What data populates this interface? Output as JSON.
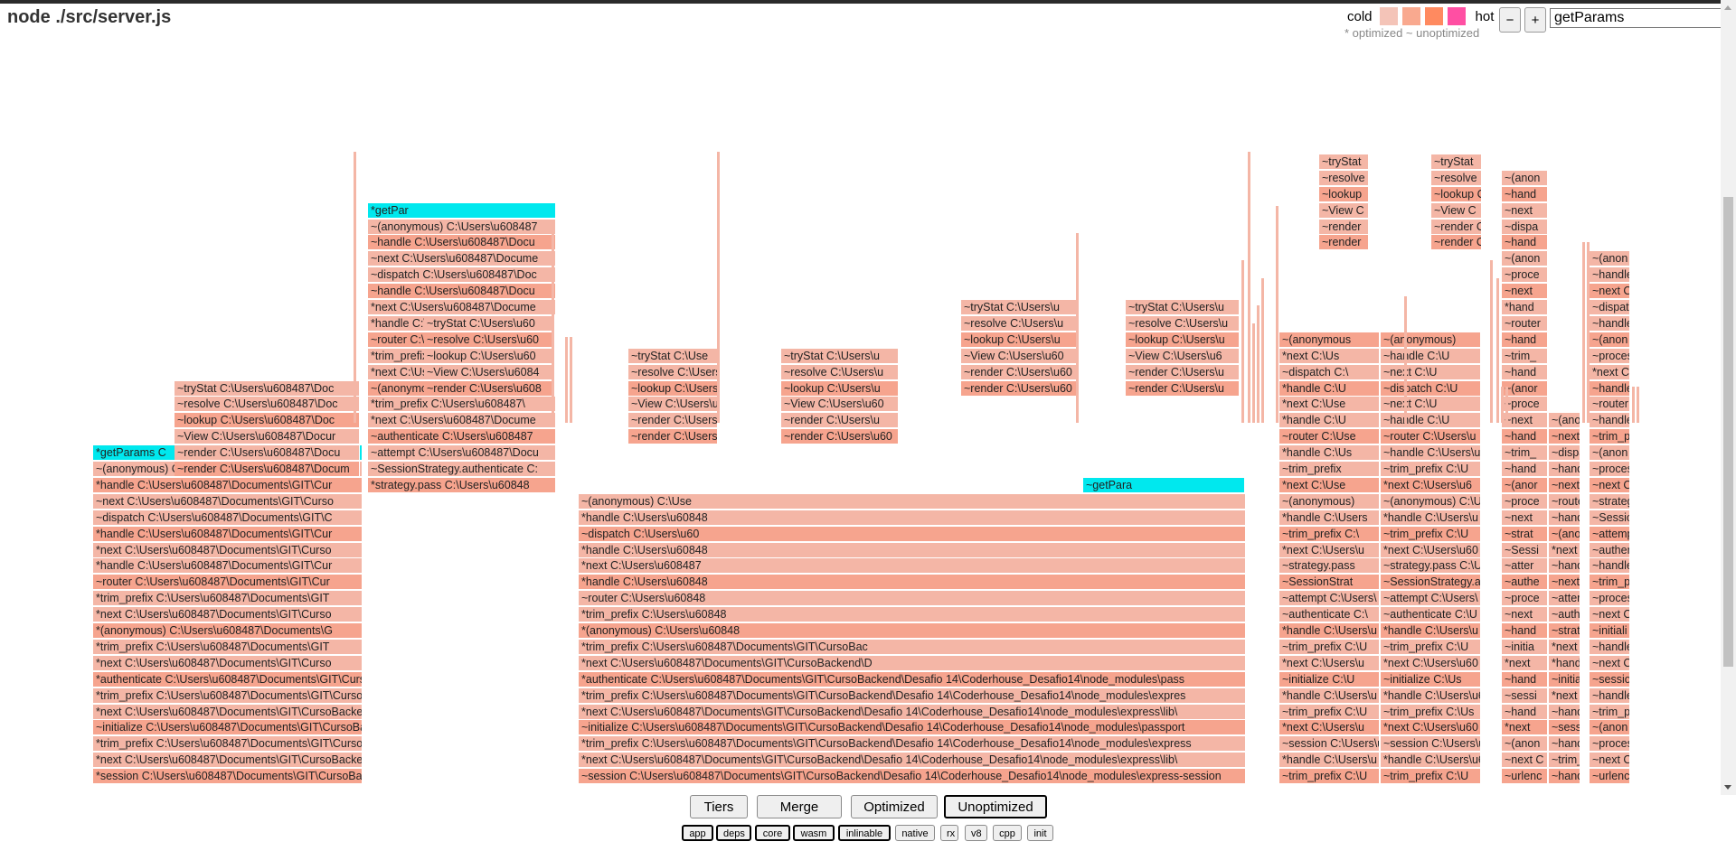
{
  "header": {
    "title": "node ./src/server.js",
    "legend": {
      "cold_label": "cold",
      "hot_label": "hot",
      "note": "* optimized ~ unoptimized",
      "swatch_colors": [
        "#f4c4b8",
        "#f9a98f",
        "#ff8a60",
        "#ff4fa3"
      ]
    },
    "zoom_out_label": "−",
    "zoom_in_label": "+",
    "search_value": "getParams"
  },
  "colors": {
    "frame_cold": "#f4b6a6",
    "frame_warm": "#f6a48e",
    "frame_highlight": "#00e8ee",
    "frame_border": "#ffffff"
  },
  "flamegraph": {
    "stacks": [
      {
        "frames": [
          "*session C:\\Users\\u608487\\Documents\\GIT\\CursoBackend\\Desafio 14\\Coderhouse_De",
          "*next C:\\Users\\u608487\\Documents\\GIT\\CursoBackend\\Desafio 14\\Coderhouse_",
          "*trim_prefix C:\\Users\\u608487\\Documents\\GIT\\CursoBackend\\Desafio 14\\Coderhouse",
          "~initialize C:\\Users\\u608487\\Documents\\GIT\\CursoBackend\\Desafio 14\\Coderhouse",
          "*next C:\\Users\\u608487\\Documents\\GIT\\CursoBackend\\Desafio 14\\Coderhouse_",
          "*trim_prefix C:\\Users\\u608487\\Documents\\GIT\\CursoBackend\\Desafio 14\\Coderhouse",
          "*authenticate C:\\Users\\u608487\\Documents\\GIT\\CursoBackend\\Desafio 14\\Coderhouse",
          "*next C:\\Users\\u608487\\Documents\\GIT\\Curso",
          "*trim_prefix C:\\Users\\u608487\\Documents\\GIT",
          "*(anonymous) C:\\Users\\u608487\\Documents\\G",
          "*next C:\\Users\\u608487\\Documents\\GIT\\Curso",
          "*trim_prefix C:\\Users\\u608487\\Documents\\GIT",
          "~router C:\\Users\\u608487\\Documents\\GIT\\Cur",
          "*handle C:\\Users\\u608487\\Documents\\GIT\\Cur",
          "*next C:\\Users\\u608487\\Documents\\GIT\\Curso",
          "*handle C:\\Users\\u608487\\Documents\\GIT\\Cur",
          "~dispatch C:\\Users\\u608487\\Documents\\GIT\\C",
          "~next C:\\Users\\u608487\\Documents\\GIT\\Curso",
          "*handle C:\\Users\\u608487\\Documents\\GIT\\Cur",
          "~(anonymous) C:\\Users\\u608487\\Documents\\G",
          "*getParams C"
        ]
      },
      {
        "frames": [
          "~render C:\\Users\\u608487\\Docum",
          "~render C:\\Users\\u608487\\Docu",
          "~View C:\\Users\\u608487\\Docur",
          "~lookup C:\\Users\\u608487\\Doc",
          "~resolve C:\\Users\\u608487\\Doc",
          "~tryStat C:\\Users\\u608487\\Doc"
        ]
      },
      {
        "frames": [
          "*strategy.pass C:\\Users\\u60848",
          "~SessionStrategy.authenticate C:",
          "~attempt C:\\Users\\u608487\\Docu",
          "~authenticate C:\\Users\\u608487",
          "*next C:\\Users\\u608487\\Docume",
          "*trim_prefix C:\\Users\\u608487\\",
          "~(anonymous) C:\\Users\\u6084877",
          "*next C:\\Users\\u608487\\Docume",
          "*trim_prefix C:\\Users\\u608487\\D",
          "~router C:\\Users\\u608487\\Docu",
          "*handle C:\\Users\\u608487\\Docur",
          "*next C:\\Users\\u608487\\Docume",
          "~handle C:\\Users\\u608487\\Docu",
          "~dispatch C:\\Users\\u608487\\Doc",
          "~next C:\\Users\\u608487\\Docume",
          "~handle C:\\Users\\u608487\\Docu",
          "~(anonymous) C:\\Users\\u608487",
          "*getPar"
        ]
      },
      {
        "frames": [
          "~render C:\\Users\\u608",
          "~View C:\\Users\\u6084",
          "~lookup C:\\Users\\u60",
          "~resolve C:\\Users\\u60",
          "~tryStat C:\\Users\\u60"
        ]
      },
      {
        "frames": [
          "*(anonymous) C:\\Use",
          "*trim_prefix C:\\Users",
          "~router C:\\Users\\u60",
          "*handle C:\\Users\\u6084",
          "*next C:\\Users\\u6084",
          "*handle C:\\Users\\u6084",
          "~dispatch C:\\Users\\u60",
          "~next C:\\Users\\u6084",
          "*handle C:\\Users\\u6084",
          "~(anonymous) C:\\Use",
          "~getPa"
        ]
      },
      {
        "frames": [
          "~render C:\\Users\\u",
          "~render C:\\Users\\u",
          "~View C:\\Users\\u6",
          "~lookup C:\\Users\\u",
          "~resolve C:\\Users\\u",
          "~tryStat C:\\Use"
        ]
      },
      {
        "frames": [
          "~(anonymous) C:\\Users\\u60848",
          "*trim_prefix C:\\Users\\u608487\\",
          "~router C:\\Users\\u608487\\Docu",
          "*handle C:\\Users\\u608487\\Docum",
          "*next C:\\Users\\u608487\\Docum",
          "~dispatch C:\\Users\\u608487\\Docu",
          "~next C:\\Users\\u608487\\Docum",
          "*handle C:\\Users\\u608487\\Docu",
          "~(anonymous) C:\\Users\\u60848",
          "~getPara"
        ]
      },
      {
        "frames": [
          "~render C:\\Users\\u60",
          "~render C:\\Users\\u",
          "~View C:\\Users\\u60",
          "~lookup C:\\Users\\u",
          "~resolve C:\\Users\\u",
          "~tryStat C:\\Users\\u"
        ]
      },
      {
        "frames": [
          "*strategy.pass C:\\Users\\u608487\\Documents\\GIT\\CursoBacke",
          "*next C:\\Users\\u608487\\Documents\\GIT\\CursoBacke",
          "*trim_prefix C:\\Users\\u608487\\Documents\\GIT\\CursoBacke",
          "~(anonymous) C:\\Users\\u608487\\Documents\\GIT\\CursoBacke",
          "*next C:\\Users\\u608487\\Documents\\GIT\\CursoBacke",
          "*trim_prefix C:\\Users\\u608487\\Documents\\GIT\\CursoBacke",
          "~router C:\\Users\\u608487\\Documents\\GIT\\CursoBackend\\",
          "*handle C:\\Users\\u608487\\Docum",
          "*next C:\\Users\\u608487\\Docum",
          "~handle C:\\Users\\u608487\\Docu",
          "~dispatch C:\\Users\\u608487\\Docu",
          "~next C:\\Users\\u608487\\Docum",
          "~handle C:\\Users\\u608487\\Docu",
          "~(anonymous) C:\\Users\\u6084",
          "~getPar"
        ]
      },
      {
        "frames": [
          "~render C:\\Users\\u60",
          "~render C:\\Users\\u60",
          "~View C:\\Users\\u60",
          "~lookup C:\\Users\\u",
          "~resolve C:\\Users\\u",
          "~tryStat C:\\Users\\u"
        ]
      },
      {
        "frames": [
          "~handle C:\\Users\\u608487\\",
          "*next C:\\Users\\u608487\\Docu",
          "~handle C:\\Users\\u608487\\",
          "~dispatch C:\\Users\\u608487",
          "~next C:\\Users\\u608487\\Doc",
          "~handle C:\\Users\\u608487\\",
          "~(anonymous) C:\\Users\\u6",
          "~getPara"
        ]
      },
      {
        "frames": [
          "~render C:\\Users\\u",
          "~render C:\\Users\\u",
          "~View C:\\Users\\u6",
          "~lookup C:\\Users\\u",
          "~resolve C:\\Users\\u",
          "~tryStat C:\\Users\\u"
        ]
      },
      {
        "frames": [
          "~session C:\\Users\\u608487\\Documents\\GIT\\CursoBackend\\Desafio 14\\Coderhouse_Desafio14\\node_modules\\express-session",
          "*next C:\\Users\\u608487\\Documents\\GIT\\CursoBackend\\Desafio 14\\Coderhouse_Desafio14\\node_modules\\express\\lib\\",
          "*trim_prefix C:\\Users\\u608487\\Documents\\GIT\\CursoBackend\\Desafio 14\\Coderhouse_Desafio14\\node_modules\\express",
          "~initialize C:\\Users\\u608487\\Documents\\GIT\\CursoBackend\\Desafio 14\\Coderhouse_Desafio14\\node_modules\\passport",
          "*next C:\\Users\\u608487\\Documents\\GIT\\CursoBackend\\Desafio 14\\Coderhouse_Desafio14\\node_modules\\express\\lib\\",
          "*trim_prefix C:\\Users\\u608487\\Documents\\GIT\\CursoBackend\\Desafio 14\\Coderhouse_Desafio14\\node_modules\\expres",
          "*authenticate C:\\Users\\u608487\\Documents\\GIT\\CursoBackend\\Desafio 14\\Coderhouse_Desafio14\\node_modules\\pass",
          "*next C:\\Users\\u608487\\Documents\\GIT\\CursoBackend\\D",
          "*trim_prefix C:\\Users\\u608487\\Documents\\GIT\\CursoBac",
          "*(anonymous) C:\\Users\\u60848",
          "*trim_prefix C:\\Users\\u60848",
          "~router C:\\Users\\u60848",
          "*handle C:\\Users\\u60848",
          "*next C:\\Users\\u608487",
          "*handle C:\\Users\\u60848",
          "~dispatch C:\\Users\\u60",
          "*handle C:\\Users\\u60848",
          "~(anonymous) C:\\Use"
        ]
      },
      {
        "frames": [
          "~trim_prefix C:\\U",
          "*handle C:\\Users\\u",
          "~session C:\\Users\\u",
          "*next C:\\Users\\u",
          "~trim_prefix C:\\U",
          "*handle C:\\Users\\u",
          "~initialize C:\\U",
          "*next C:\\Users\\u",
          "~trim_prefix C:\\U",
          "*handle C:\\Users\\u",
          "~authenticate C:\\",
          "~attempt C:\\Users\\",
          "~SessionStrat",
          "~strategy.pass",
          "*next C:\\Users\\u",
          "~trim_prefix C:\\",
          "*handle C:\\Users",
          "~(anonymous)",
          "*next C:\\Use",
          "~trim_prefix",
          "*handle C:\\Us",
          "~router C:\\Use",
          "*handle C:\\U",
          "*next C:\\Use",
          "*handle C:\\U",
          "~dispatch C:\\",
          "*next C:\\Us",
          "~(anonymous"
        ]
      },
      {
        "frames": [
          "~render",
          "~render",
          "~View C",
          "~lookup",
          "~resolve",
          "~tryStat"
        ]
      },
      {
        "frames": [
          "~trim_prefix C:\\U",
          "*handle C:\\Users\\u6",
          "~session C:\\Users\\u",
          "*next C:\\Users\\u60",
          "~trim_prefix C:\\Us",
          "*handle C:\\Users\\u6",
          "~initialize C:\\Us",
          "*next C:\\Users\\u60",
          "~trim_prefix C:\\U",
          "*handle C:\\Users\\u",
          "~authenticate C:\\U",
          "~attempt C:\\Users\\",
          "~SessionStrategy.a",
          "~strategy.pass C:\\U",
          "*next C:\\Users\\u60",
          "~trim_prefix C:\\U",
          "*handle C:\\Users\\u",
          "~(anonymous) C:\\U",
          "*next C:\\Users\\u6",
          "~trim_prefix C:\\U",
          "~handle C:\\Users\\u",
          "~router C:\\Users\\u",
          "~handle C:\\U",
          "~next C:\\U",
          "~dispatch C:\\U",
          "~next C:\\U",
          "~handle C:\\U",
          "~(anonymous)"
        ]
      },
      {
        "frames": [
          "~render C",
          "~render C",
          "~View C",
          "~lookup C",
          "~resolve",
          "~tryStat"
        ]
      },
      {
        "frames": [
          "~urlenc",
          "~next C",
          "~(anon",
          "*next",
          "~hand",
          "~sessi",
          "~hand",
          "*next",
          "~initia",
          "~hand",
          "~next",
          "~proce",
          "~authe",
          "~atter",
          "~Sessi",
          "~strat",
          "~next",
          "~proce",
          "~(anor",
          "~hand",
          "~trim_",
          "~hand",
          "~next",
          "~proce",
          "~(anor",
          "~hand",
          "~trim_",
          "~hand",
          "~router",
          "*hand",
          "~next",
          "~proce",
          "~(anon",
          "~hand",
          "~dispa",
          "~next",
          "~hand",
          "~(anon"
        ]
      },
      {
        "frames": [
          "~handl",
          "~trim_",
          "~hand",
          "~sessi",
          "~hand",
          "*next",
          "~initia",
          "*hand",
          "*next",
          "~strat",
          "~authe",
          "~atter",
          "~next",
          "~hand",
          "*next",
          "~(ano",
          "~hand",
          "~route",
          "~next",
          "~hand",
          "~dispa",
          "~next",
          "~(ano"
        ]
      },
      {
        "frames": [
          "~urlenc",
          "~next C",
          "~proces",
          "~(anon",
          "~trim_p",
          "~handle",
          "~sessio",
          "~next C",
          "~handle",
          "~initiali",
          "~next C",
          "~proces",
          "~trim_p",
          "~handle",
          "~authent",
          "~attemp",
          "~Sessio",
          "~strateg",
          "~next C",
          "~proces",
          "~(anon",
          "~trim_p",
          "~handle",
          "~router",
          "~handle",
          "*next C",
          "~proces",
          "~(anon",
          "~handle",
          "~dispat",
          "~next C",
          "~handle",
          "~(anon"
        ]
      }
    ]
  },
  "tiers": {
    "buttons": [
      {
        "label": "Tiers",
        "active": false
      },
      {
        "label": "Merge",
        "active": false
      },
      {
        "label": "Optimized",
        "active": false
      },
      {
        "label": "Unoptimized",
        "active": true
      }
    ]
  },
  "filters": {
    "buttons": [
      {
        "label": "app",
        "active": true
      },
      {
        "label": "deps",
        "active": true
      },
      {
        "label": "core",
        "active": true
      },
      {
        "label": "wasm",
        "active": true
      },
      {
        "label": "inlinable",
        "active": true
      },
      {
        "label": "native",
        "active": false
      },
      {
        "label": "rx",
        "active": false
      },
      {
        "label": "v8",
        "active": false
      },
      {
        "label": "cpp",
        "active": false
      },
      {
        "label": "init",
        "active": false
      }
    ]
  }
}
